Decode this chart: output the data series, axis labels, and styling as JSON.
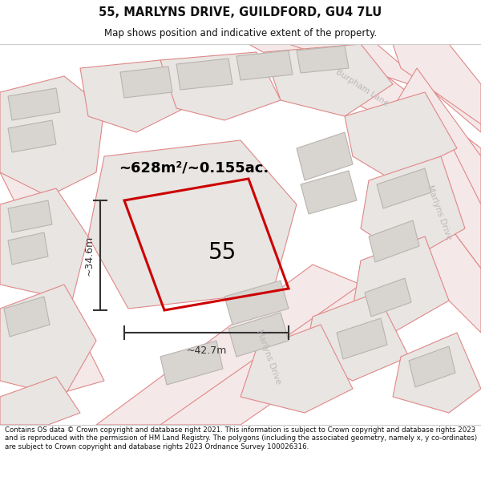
{
  "title": "55, MARLYNS DRIVE, GUILDFORD, GU4 7LU",
  "subtitle": "Map shows position and indicative extent of the property.",
  "area_label": "~628m²/~0.155ac.",
  "number_label": "55",
  "dim_h": "~34.6m",
  "dim_w": "~42.7m",
  "footer": "Contains OS data © Crown copyright and database right 2021. This information is subject to Crown copyright and database rights 2023 and is reproduced with the permission of HM Land Registry. The polygons (including the associated geometry, namely x, y co-ordinates) are subject to Crown copyright and database rights 2023 Ordnance Survey 100026316.",
  "bg_color": "#ffffff",
  "map_bg": "#f2f0ee",
  "road_fill": "#f5e8e8",
  "road_edge": "#e08888",
  "block_fill": "#e8e5e2",
  "block_edge": "#e08888",
  "building_fill": "#d8d4d0",
  "building_edge": "#b8b4b0",
  "highlight_color": "#cc0000",
  "street_label_color": "#bbbbbb",
  "dim_color": "#333333",
  "title_color": "#111111",
  "footer_color": "#111111"
}
